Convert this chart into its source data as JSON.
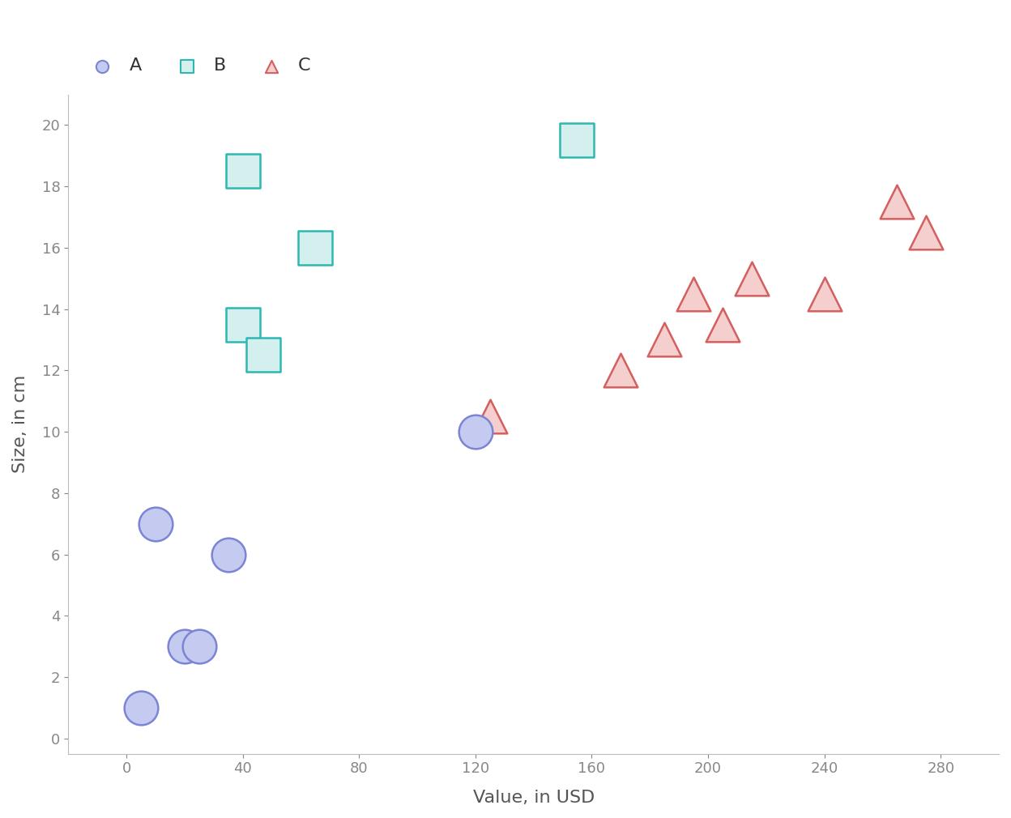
{
  "circles": {
    "x": [
      5,
      10,
      20,
      25,
      35,
      120
    ],
    "y": [
      1,
      7,
      3,
      3,
      6,
      10
    ],
    "color_face": "#c5caf0",
    "color_edge": "#7b85d4",
    "label": "A"
  },
  "squares": {
    "x": [
      40,
      40,
      47,
      65,
      155
    ],
    "y": [
      18.5,
      13.5,
      12.5,
      16,
      19.5
    ],
    "color_face": "#d4f0ee",
    "color_edge": "#2db8b0",
    "label": "B"
  },
  "triangles": {
    "x": [
      125,
      170,
      185,
      195,
      205,
      215,
      240,
      265,
      275
    ],
    "y": [
      10.5,
      12,
      13,
      14.5,
      13.5,
      15,
      14.5,
      17.5,
      16.5
    ],
    "color_face": "#f5cece",
    "color_edge": "#d45f5f",
    "label": "C"
  },
  "xlabel": "Value, in USD",
  "ylabel": "Size, in cm",
  "xlim": [
    -20,
    300
  ],
  "ylim": [
    -0.5,
    21
  ],
  "xticks": [
    0,
    40,
    80,
    120,
    160,
    200,
    240,
    280
  ],
  "yticks": [
    0,
    2,
    4,
    6,
    8,
    10,
    12,
    14,
    16,
    18,
    20
  ],
  "marker_size": 900,
  "legend_fontsize": 16,
  "axis_label_fontsize": 16,
  "tick_fontsize": 13,
  "background_color": "#ffffff",
  "axis_color": "#888888"
}
